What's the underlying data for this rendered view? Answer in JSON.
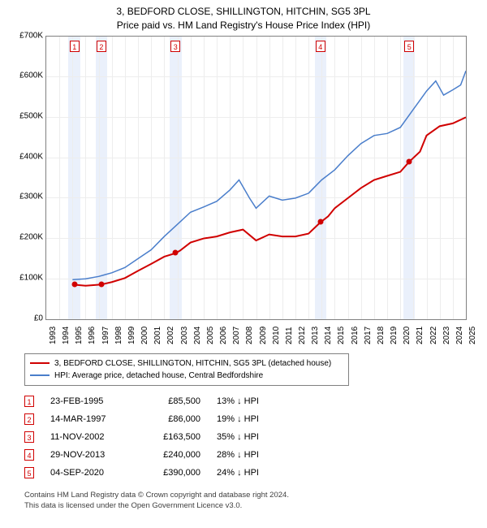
{
  "title_line1": "3, BEDFORD CLOSE, SHILLINGTON, HITCHIN, SG5 3PL",
  "title_line2": "Price paid vs. HM Land Registry's House Price Index (HPI)",
  "chart": {
    "type": "line",
    "background_color": "#ffffff",
    "grid_color": "#ededed",
    "border_color": "#808080",
    "y": {
      "min": 0,
      "max": 700000,
      "step": 100000,
      "labels": [
        "£0",
        "£100K",
        "£200K",
        "£300K",
        "£400K",
        "£500K",
        "£600K",
        "£700K"
      ]
    },
    "x": {
      "min": 1993,
      "max": 2025,
      "step": 1,
      "labels": [
        "1993",
        "1994",
        "1995",
        "1996",
        "1997",
        "1998",
        "1999",
        "2000",
        "2001",
        "2002",
        "2003",
        "2004",
        "2005",
        "2006",
        "2007",
        "2008",
        "2009",
        "2010",
        "2011",
        "2012",
        "2013",
        "2014",
        "2015",
        "2016",
        "2017",
        "2018",
        "2019",
        "2020",
        "2021",
        "2022",
        "2023",
        "2024",
        "2025"
      ]
    },
    "marker_band_color": "#eaf0fb",
    "marker_box_border": "#d00000",
    "series": [
      {
        "name": "property",
        "label": "3, BEDFORD CLOSE, SHILLINGTON, HITCHIN, SG5 3PL (detached house)",
        "color": "#d00000",
        "line_width": 2,
        "points": [
          [
            1995.15,
            85500
          ],
          [
            1996,
            83000
          ],
          [
            1997.2,
            86000
          ],
          [
            1998,
            92000
          ],
          [
            1999,
            102000
          ],
          [
            2000,
            120000
          ],
          [
            2001,
            137000
          ],
          [
            2002,
            155000
          ],
          [
            2002.86,
            163500
          ],
          [
            2003.2,
            170000
          ],
          [
            2004,
            190000
          ],
          [
            2005,
            200000
          ],
          [
            2006,
            205000
          ],
          [
            2007,
            215000
          ],
          [
            2008,
            222000
          ],
          [
            2009,
            195000
          ],
          [
            2010,
            210000
          ],
          [
            2011,
            205000
          ],
          [
            2012,
            205000
          ],
          [
            2013,
            212000
          ],
          [
            2013.91,
            240000
          ],
          [
            2014.5,
            255000
          ],
          [
            2015,
            275000
          ],
          [
            2016,
            300000
          ],
          [
            2017,
            325000
          ],
          [
            2018,
            345000
          ],
          [
            2019,
            355000
          ],
          [
            2020,
            365000
          ],
          [
            2020.68,
            390000
          ],
          [
            2021.5,
            415000
          ],
          [
            2022,
            455000
          ],
          [
            2023,
            478000
          ],
          [
            2024,
            485000
          ],
          [
            2025,
            500000
          ]
        ],
        "dots": [
          {
            "x": 1995.15,
            "y": 85500
          },
          {
            "x": 1997.2,
            "y": 86000
          },
          {
            "x": 2002.86,
            "y": 163500
          },
          {
            "x": 2013.91,
            "y": 240000
          },
          {
            "x": 2020.68,
            "y": 390000
          }
        ]
      },
      {
        "name": "hpi",
        "label": "HPI: Average price, detached house, Central Bedfordshire",
        "color": "#4a7ecb",
        "line_width": 1.5,
        "points": [
          [
            1995,
            98000
          ],
          [
            1996,
            100000
          ],
          [
            1997,
            106000
          ],
          [
            1998,
            115000
          ],
          [
            1999,
            128000
          ],
          [
            2000,
            150000
          ],
          [
            2001,
            172000
          ],
          [
            2002,
            205000
          ],
          [
            2003,
            235000
          ],
          [
            2004,
            265000
          ],
          [
            2005,
            278000
          ],
          [
            2006,
            292000
          ],
          [
            2007,
            320000
          ],
          [
            2007.7,
            345000
          ],
          [
            2008.5,
            300000
          ],
          [
            2009,
            275000
          ],
          [
            2010,
            305000
          ],
          [
            2011,
            295000
          ],
          [
            2012,
            300000
          ],
          [
            2013,
            312000
          ],
          [
            2014,
            345000
          ],
          [
            2015,
            370000
          ],
          [
            2016,
            405000
          ],
          [
            2017,
            435000
          ],
          [
            2018,
            455000
          ],
          [
            2019,
            460000
          ],
          [
            2020,
            475000
          ],
          [
            2021,
            520000
          ],
          [
            2022,
            565000
          ],
          [
            2022.7,
            590000
          ],
          [
            2023.3,
            555000
          ],
          [
            2024,
            568000
          ],
          [
            2024.6,
            580000
          ],
          [
            2025,
            615000
          ]
        ]
      }
    ],
    "sale_markers": [
      {
        "num": "1",
        "year": 1995.15
      },
      {
        "num": "2",
        "year": 1997.2
      },
      {
        "num": "3",
        "year": 2002.86
      },
      {
        "num": "4",
        "year": 2013.91
      },
      {
        "num": "5",
        "year": 2020.68
      }
    ]
  },
  "legend": {
    "rows": [
      {
        "color": "#d00000",
        "label": "3, BEDFORD CLOSE, SHILLINGTON, HITCHIN, SG5 3PL (detached house)"
      },
      {
        "color": "#4a7ecb",
        "label": "HPI: Average price, detached house, Central Bedfordshire"
      }
    ]
  },
  "sales": [
    {
      "num": "1",
      "date": "23-FEB-1995",
      "price": "£85,500",
      "diff": "13% ↓ HPI"
    },
    {
      "num": "2",
      "date": "14-MAR-1997",
      "price": "£86,000",
      "diff": "19% ↓ HPI"
    },
    {
      "num": "3",
      "date": "11-NOV-2002",
      "price": "£163,500",
      "diff": "35% ↓ HPI"
    },
    {
      "num": "4",
      "date": "29-NOV-2013",
      "price": "£240,000",
      "diff": "28% ↓ HPI"
    },
    {
      "num": "5",
      "date": "04-SEP-2020",
      "price": "£390,000",
      "diff": "24% ↓ HPI"
    }
  ],
  "footer_line1": "Contains HM Land Registry data © Crown copyright and database right 2024.",
  "footer_line2": "This data is licensed under the Open Government Licence v3.0."
}
